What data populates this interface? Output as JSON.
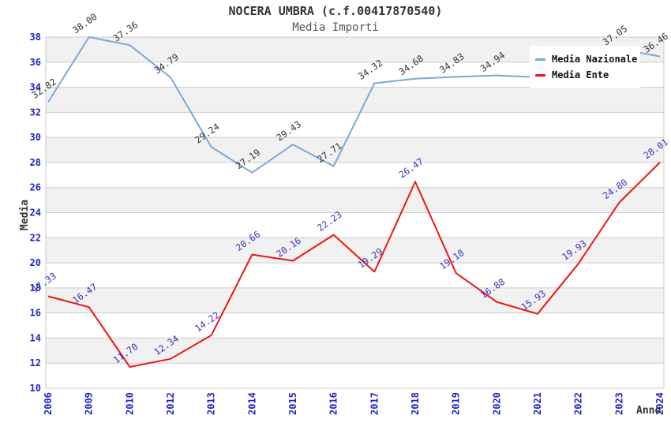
{
  "page": {
    "background_color": "#ffffff"
  },
  "chart_data": {
    "type": "line",
    "title": "NOCERA UMBRA (c.f.00417870540)",
    "subtitle": "Media Importi",
    "xlabel": "Anno",
    "ylabel": "Media",
    "ylim": [
      10,
      38
    ],
    "ytick_step": 2,
    "grid": "horizontal gridlines with alternating gray bands",
    "legend_position": "top-right overlay box (covers part of blue line)",
    "categories": [
      "2006",
      "2009",
      "2010",
      "2012",
      "2013",
      "2014",
      "2015",
      "2016",
      "2017",
      "2018",
      "2019",
      "2020",
      "2021",
      "2022",
      "2023",
      "2024"
    ],
    "series": [
      {
        "name": "Media Nazionale",
        "color": "#7CA7D9",
        "label_color": "#333333",
        "values": [
          32.82,
          38.0,
          37.36,
          34.79,
          29.24,
          27.19,
          29.43,
          27.71,
          34.32,
          34.68,
          34.83,
          34.94,
          34.8,
          35.95,
          37.05,
          36.46
        ],
        "labels": [
          "32.82",
          "38.00",
          "37.36",
          "34.79",
          "29.24",
          "27.19",
          "29.43",
          "27.71",
          "34.32",
          "34.68",
          "34.83",
          "34.94",
          null,
          null,
          "37.05",
          "36.46"
        ],
        "note": "2021 and 2022 points are hidden behind the legend box; their labels are not visible"
      },
      {
        "name": "Media Ente",
        "color": "#EE1414",
        "label_color": "#3333B8",
        "values": [
          17.33,
          16.47,
          11.7,
          12.34,
          14.22,
          20.66,
          20.16,
          22.23,
          19.29,
          26.47,
          19.18,
          16.88,
          15.93,
          19.93,
          24.8,
          28.01
        ],
        "labels": [
          "17.33",
          "16.47",
          "11.70",
          "12.34",
          "14.22",
          "20.66",
          "20.16",
          "22.23",
          "19.29",
          "26.47",
          "19.18",
          "16.88",
          "15.93",
          "19.93",
          "24.80",
          "28.01"
        ]
      }
    ],
    "styles": {
      "band_color": "#F1F1F1",
      "grid_color": "#CCCCCC",
      "axis_border_color": "#C8C8C8",
      "tick_label_color": "#2222CC",
      "title_color": "#333333",
      "subtitle_color": "#555555",
      "axis_title_color": "#333333",
      "legend_background": "#FFFFFF"
    }
  }
}
